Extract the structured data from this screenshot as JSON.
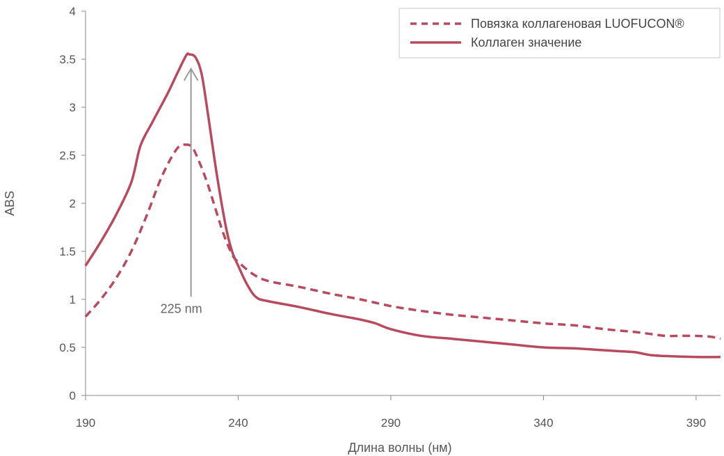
{
  "chart_data": {
    "type": "line",
    "title": "",
    "xlabel": "Длина волны (нм)",
    "ylabel": "ABS",
    "xlim": [
      190,
      398
    ],
    "ylim": [
      0,
      4
    ],
    "x_ticks": [
      190,
      240,
      290,
      340,
      390
    ],
    "y_ticks": [
      0,
      0.5,
      1,
      1.5,
      2,
      2.5,
      3,
      3.5,
      4
    ],
    "y_tick_labels": [
      "0",
      "0.5",
      "1",
      "1.5",
      "2",
      "2.5",
      "3",
      "3.5",
      "4"
    ],
    "grid": false,
    "legend_position": "top-right",
    "series": [
      {
        "name": "Повязка коллагеновая LUOFUCON®",
        "style": "dashed",
        "color": "#b84a5e",
        "x": [
          190,
          195,
          200,
          205,
          210,
          215,
          220,
          223,
          225,
          227,
          230,
          235,
          238,
          240,
          245,
          250,
          260,
          270,
          280,
          290,
          300,
          310,
          320,
          330,
          340,
          350,
          360,
          370,
          375,
          380,
          385,
          390,
          395,
          398
        ],
        "y": [
          0.82,
          1.0,
          1.22,
          1.5,
          1.87,
          2.28,
          2.57,
          2.61,
          2.58,
          2.45,
          2.2,
          1.7,
          1.47,
          1.39,
          1.26,
          1.19,
          1.13,
          1.06,
          1.0,
          0.93,
          0.88,
          0.84,
          0.81,
          0.78,
          0.75,
          0.73,
          0.69,
          0.66,
          0.64,
          0.62,
          0.62,
          0.62,
          0.61,
          0.59
        ]
      },
      {
        "name": "Коллаген значение",
        "style": "solid",
        "color": "#b84a5e",
        "x": [
          190,
          195,
          200,
          205,
          208,
          212,
          217,
          220,
          223,
          224,
          226,
          228,
          230,
          233,
          236,
          238,
          240,
          243,
          246,
          250,
          260,
          270,
          280,
          285,
          290,
          300,
          310,
          320,
          330,
          340,
          350,
          360,
          365,
          370,
          375,
          380,
          390,
          398
        ],
        "y": [
          1.35,
          1.6,
          1.88,
          2.22,
          2.6,
          2.85,
          3.15,
          3.35,
          3.54,
          3.55,
          3.52,
          3.35,
          2.95,
          2.3,
          1.75,
          1.5,
          1.35,
          1.15,
          1.02,
          0.98,
          0.92,
          0.85,
          0.79,
          0.75,
          0.69,
          0.62,
          0.59,
          0.56,
          0.53,
          0.5,
          0.49,
          0.47,
          0.46,
          0.45,
          0.42,
          0.41,
          0.4,
          0.4
        ]
      }
    ],
    "annotations": [
      {
        "text": "225 nm",
        "x": 225,
        "y_from": 1.23,
        "y_to": 3.4
      }
    ]
  },
  "colors": {
    "series": "#b84a5e",
    "axis": "#888888",
    "annotation": "#999999"
  }
}
